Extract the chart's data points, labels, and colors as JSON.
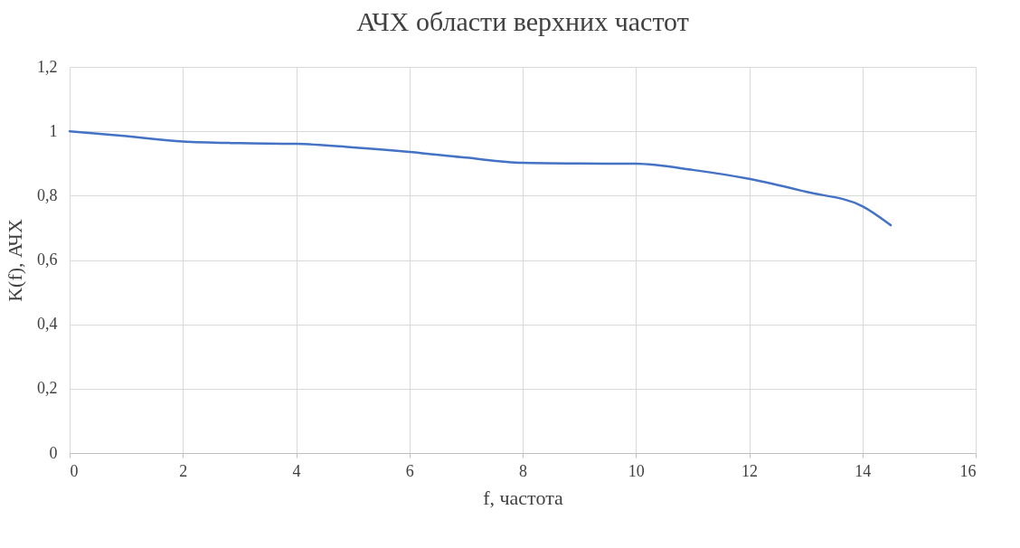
{
  "chart_data": {
    "type": "line",
    "title": "АЧХ области верхних частот",
    "xlabel": "f, частота",
    "ylabel": "K(f), АЧХ",
    "x": [
      0,
      1,
      2,
      3,
      4,
      5,
      6,
      7,
      8,
      9,
      10,
      11,
      12,
      13,
      14,
      14.5
    ],
    "series": [
      {
        "color": "#4472c4",
        "values": [
          1.0,
          0.985,
          0.968,
          0.963,
          0.961,
          0.95,
          0.936,
          0.918,
          0.902,
          0.9,
          0.899,
          0.88,
          0.852,
          0.812,
          0.767,
          0.708
        ]
      }
    ],
    "xlim": [
      0,
      16
    ],
    "xticks": [
      0,
      2,
      4,
      6,
      8,
      10,
      12,
      14,
      16
    ],
    "ylim": [
      0,
      1.2
    ],
    "yticks": [
      0,
      {
        "value": 0.2,
        "label": "0,2"
      },
      {
        "value": 0.4,
        "label": "0,4"
      },
      {
        "value": 0.6,
        "label": "0,6"
      },
      {
        "value": 0.8,
        "label": "0,8"
      },
      1,
      {
        "value": 1.2,
        "label": "1,2"
      }
    ],
    "grid": true,
    "marker": "none",
    "line_style": "solid"
  }
}
